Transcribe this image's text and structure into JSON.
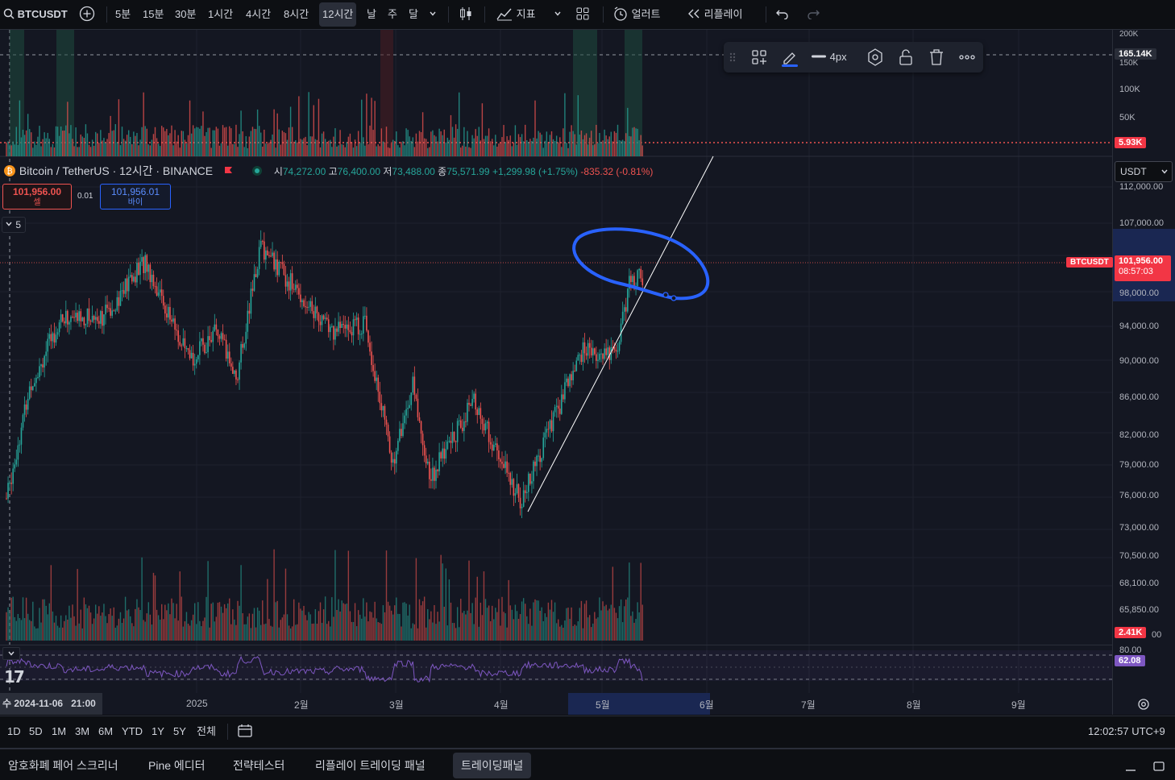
{
  "toolbar": {
    "symbol": "BTCUSDT",
    "timeframes": [
      "5분",
      "15분",
      "30분",
      "1시간",
      "4시간",
      "8시간",
      "12시간",
      "날",
      "주",
      "달"
    ],
    "active_timeframe": "12시간",
    "indicators_label": "지표",
    "alert_label": "얼러트",
    "replay_label": "리플레이"
  },
  "legend": {
    "title": "Bitcoin / TetherUS · 12시간 · BINANCE",
    "open_label": "시",
    "open": "74,272.00",
    "high_label": "고",
    "high": "76,400.00",
    "low_label": "저",
    "low": "73,488.00",
    "close_label": "종",
    "close": "75,571.99",
    "change": "+1,299.98 (+1.75%)",
    "change2": "-835.32 (-0.81%)"
  },
  "order": {
    "sell_price": "101,956.00",
    "sell_label": "셀",
    "spread": "0.01",
    "buy_price": "101,956.01",
    "buy_label": "바이",
    "collapse_count": "5"
  },
  "drawing_toolbar": {
    "width_label": "4px"
  },
  "price_scale": {
    "currency": "USDT",
    "labels": [
      "112,000.00",
      "107,000.00",
      "98,000.00",
      "94,000.00",
      "90,000.00",
      "86,000.00",
      "82,000.00",
      "79,000.00",
      "76,000.00",
      "73,000.00",
      "70,500.00",
      "68,100.00",
      "65,850.00"
    ],
    "symbol_tag": "BTCUSDT",
    "last_price": "101,956.00",
    "countdown": "08:57:03"
  },
  "volume_scale": {
    "labels": [
      "200K",
      "150K",
      "100K",
      "50K"
    ],
    "line_tag": "165.14K",
    "last_tag": "5.93K",
    "main_vol_tag": "2.41K",
    "main_vol_suffix": "00"
  },
  "rsi": {
    "level": "80.00",
    "value": "62.08"
  },
  "time_axis": {
    "crosshair": "수 2024-11-06   21:00",
    "labels": [
      "2025",
      "2월",
      "3월",
      "4월",
      "5월",
      "6월",
      "7월",
      "8월",
      "9월"
    ]
  },
  "range_bar": {
    "ranges": [
      "1D",
      "5D",
      "1M",
      "3M",
      "6M",
      "YTD",
      "1Y",
      "5Y",
      "전체"
    ],
    "clock": "12:02:57 UTC+9"
  },
  "panels": {
    "tabs": [
      "암호화폐 페어 스크리너",
      "Pine 에디터",
      "전략테스터",
      "리플레이 트레이딩 패널",
      "트레이딩패널"
    ],
    "active": "트레이딩패널"
  },
  "colors": {
    "up": "#26a69a",
    "down": "#ef5350",
    "accent": "#2962ff",
    "drawing": "#2962ff"
  },
  "chart_data": {
    "type": "candlestick",
    "title": "Bitcoin / TetherUS · 12시간 · BINANCE",
    "interval": "12시간",
    "x_labels": [
      "2025",
      "2월",
      "3월",
      "4월",
      "5월",
      "6월",
      "7월",
      "8월",
      "9월"
    ],
    "y_range": [
      63000,
      114000
    ],
    "approx_close_path": [
      [
        "2024-11-06",
        75500
      ],
      [
        "2024-11-13",
        90000
      ],
      [
        "2024-11-22",
        98500
      ],
      [
        "2024-12-05",
        99000
      ],
      [
        "2024-12-17",
        106000
      ],
      [
        "2024-12-30",
        93000
      ],
      [
        "2025-01-07",
        97000
      ],
      [
        "2025-01-13",
        91000
      ],
      [
        "2025-01-20",
        108000
      ],
      [
        "2025-01-31",
        102000
      ],
      [
        "2025-02-10",
        97000
      ],
      [
        "2025-02-20",
        98000
      ],
      [
        "2025-02-28",
        80000
      ],
      [
        "2025-03-06",
        90000
      ],
      [
        "2025-03-11",
        78000
      ],
      [
        "2025-03-24",
        88000
      ],
      [
        "2025-03-30",
        82000
      ],
      [
        "2025-04-07",
        75000
      ],
      [
        "2025-04-15",
        84000
      ],
      [
        "2025-04-25",
        94500
      ],
      [
        "2025-05-05",
        94000
      ],
      [
        "2025-05-09",
        103000
      ],
      [
        "2025-05-12",
        104500
      ],
      [
        "2025-05-13",
        101956
      ]
    ],
    "last_price": 101956.0,
    "volume_last": "2.41K",
    "rsi_value": 62.08
  }
}
